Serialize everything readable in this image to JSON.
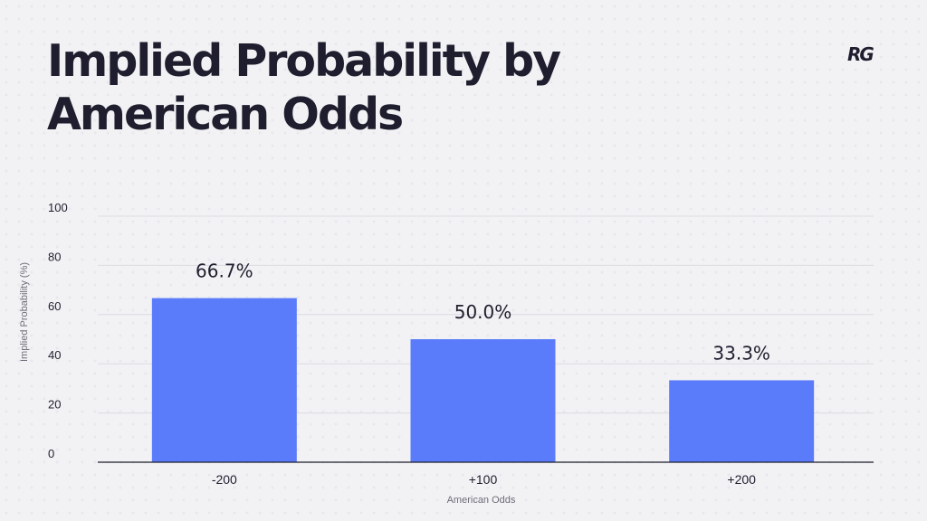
{
  "header": {
    "title": "Implied Probability by American Odds",
    "logo": "RG"
  },
  "colors": {
    "bar": "#5b7cfa",
    "text": "#1e1e2e",
    "grid": "#dcdce2",
    "axis": "#1e1e2e"
  },
  "chart_data": {
    "type": "bar",
    "title": "Implied Probability by American Odds",
    "xlabel": "American Odds",
    "ylabel": "Implied Probability (%)",
    "categories": [
      "-200",
      "+100",
      "+200"
    ],
    "values": [
      66.7,
      50.0,
      33.3
    ],
    "data_labels": [
      "66.7%",
      "50.0%",
      "33.3%"
    ],
    "ylim": [
      0,
      100
    ],
    "yticks": [
      0,
      20,
      40,
      60,
      80,
      100
    ],
    "grid": true,
    "legend": false
  }
}
